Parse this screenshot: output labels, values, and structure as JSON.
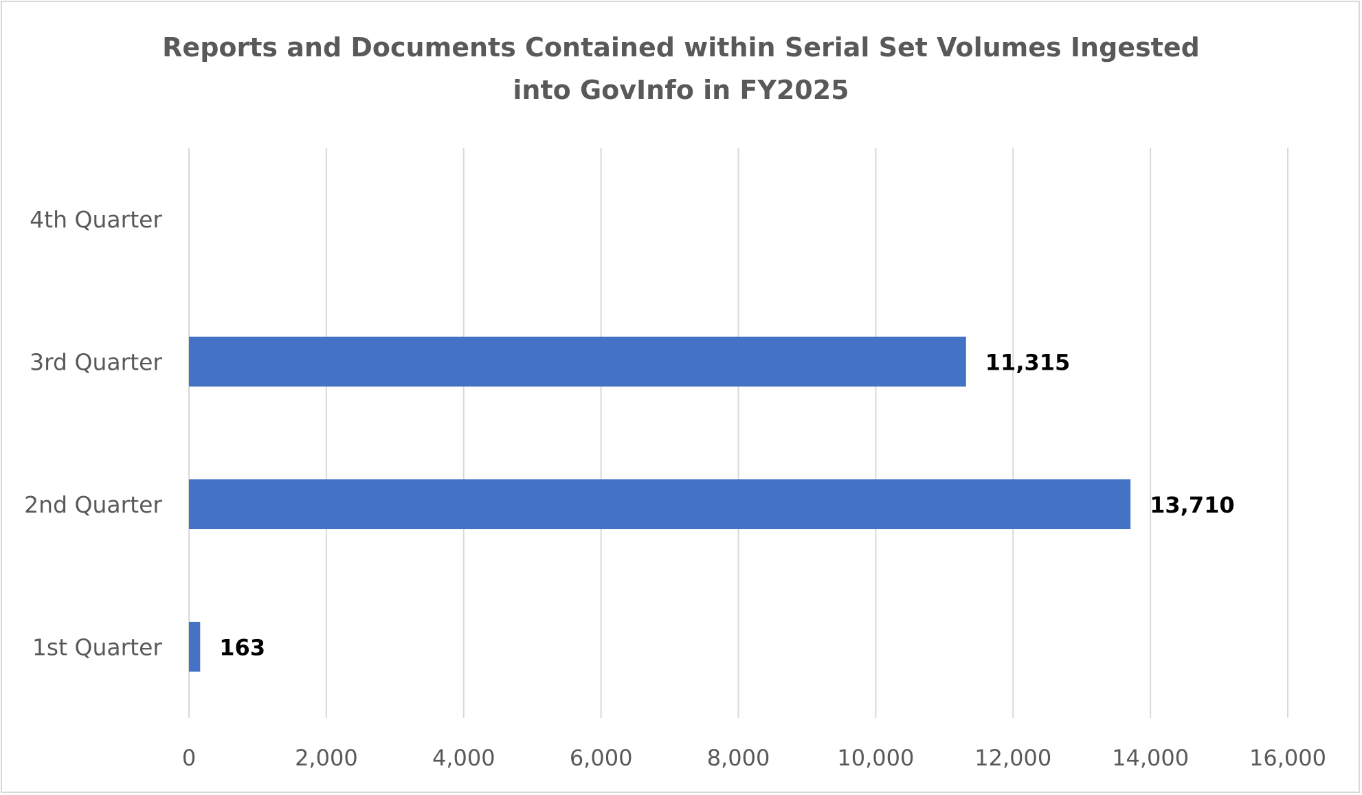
{
  "chart_data": {
    "type": "bar",
    "orientation": "horizontal",
    "title_lines": [
      "Reports and Documents Contained within Serial Set Volumes Ingested",
      "into GovInfo in FY2025"
    ],
    "categories": [
      "1st Quarter",
      "2nd Quarter",
      "3rd Quarter",
      "4th Quarter"
    ],
    "values": [
      163,
      13710,
      11315,
      null
    ],
    "data_labels": [
      "163",
      "13,710",
      "11,315",
      ""
    ],
    "xlim": [
      0,
      16000
    ],
    "x_ticks": [
      0,
      2000,
      4000,
      6000,
      8000,
      10000,
      12000,
      14000,
      16000
    ],
    "x_tick_labels": [
      "0",
      "2,000",
      "4,000",
      "6,000",
      "8,000",
      "10,000",
      "12,000",
      "14,000",
      "16,000"
    ],
    "grid": "vertical",
    "legend": "none",
    "bar_color": "#4472c4"
  }
}
